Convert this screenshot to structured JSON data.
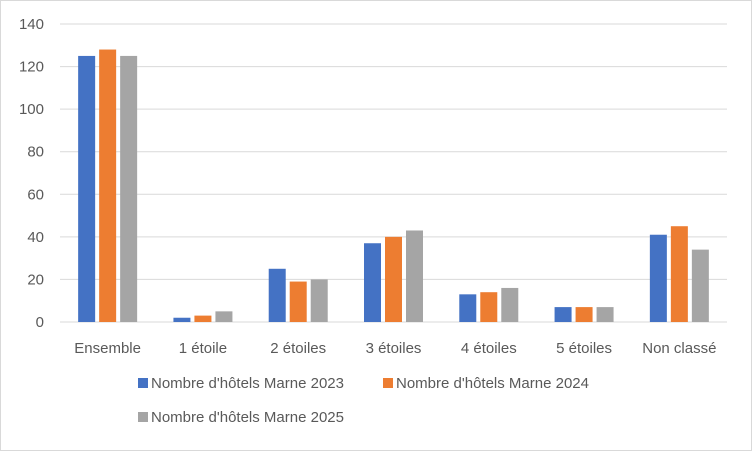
{
  "chart_data": {
    "type": "bar",
    "title": "",
    "xlabel": "",
    "ylabel": "",
    "ylim": [
      0,
      140
    ],
    "yticks": [
      0,
      20,
      40,
      60,
      80,
      100,
      120,
      140
    ],
    "grid": true,
    "legend_position": "bottom",
    "categories": [
      "Ensemble",
      "1 étoile",
      "2 étoiles",
      "3 étoiles",
      "4 étoiles",
      "5 étoiles",
      "Non classé"
    ],
    "series": [
      {
        "name": "Nombre d'hôtels Marne 2023",
        "color": "#4472c4",
        "values": [
          125,
          2,
          25,
          37,
          13,
          7,
          41
        ]
      },
      {
        "name": "Nombre d'hôtels Marne 2024",
        "color": "#ed7d31",
        "values": [
          128,
          3,
          19,
          40,
          14,
          7,
          45
        ]
      },
      {
        "name": "Nombre d'hôtels Marne 2025",
        "color": "#a5a5a5",
        "values": [
          125,
          5,
          20,
          43,
          16,
          7,
          34
        ]
      }
    ]
  }
}
